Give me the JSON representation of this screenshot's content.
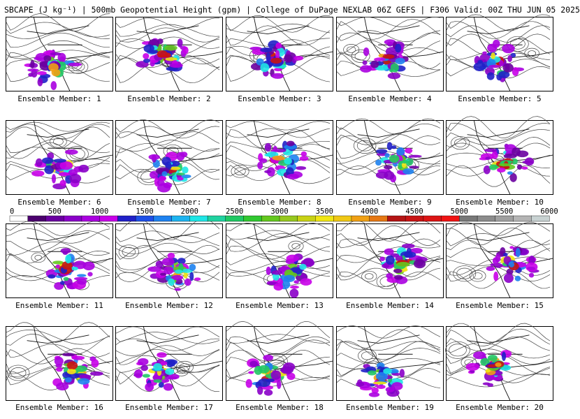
{
  "title": "SBCAPE (J kg⁻¹) | 500mb Geopotential Height (gpm) | College of DuPage NEXLAB 06Z GEFS | F306 Valid: 00Z THU JUN 05 2025",
  "colorbar": {
    "ticks": [
      "0",
      "500",
      "1000",
      "1500",
      "2000",
      "2500",
      "3000",
      "3500",
      "4000",
      "4500",
      "5000",
      "5500",
      "6000"
    ],
    "colors": [
      "#ffffff",
      "#4b006e",
      "#6a00a0",
      "#8a00c8",
      "#aa00e0",
      "#c800e8",
      "#2020c8",
      "#1e50e8",
      "#1e82f0",
      "#1eb4f0",
      "#1ee6e6",
      "#20d2a0",
      "#20c864",
      "#30c830",
      "#64c81e",
      "#96c81e",
      "#c8d214",
      "#f0e614",
      "#f0c814",
      "#f0a014",
      "#e67814",
      "#b41414",
      "#c81414",
      "#dc1414",
      "#f01414",
      "#787878",
      "#8c8c8c",
      "#a0a0a0",
      "#b4b4b4",
      "#c8d2d2"
    ],
    "min": 0,
    "max": 6000
  },
  "members": [
    {
      "label": "Ensemble Member: 1"
    },
    {
      "label": "Ensemble Member: 2"
    },
    {
      "label": "Ensemble Member: 3"
    },
    {
      "label": "Ensemble Member: 4"
    },
    {
      "label": "Ensemble Member: 5"
    },
    {
      "label": "Ensemble Member: 6"
    },
    {
      "label": "Ensemble Member: 7"
    },
    {
      "label": "Ensemble Member: 8"
    },
    {
      "label": "Ensemble Member: 9"
    },
    {
      "label": "Ensemble Member: 10"
    },
    {
      "label": "Ensemble Member: 11"
    },
    {
      "label": "Ensemble Member: 12"
    },
    {
      "label": "Ensemble Member: 13"
    },
    {
      "label": "Ensemble Member: 14"
    },
    {
      "label": "Ensemble Member: 15"
    },
    {
      "label": "Ensemble Member: 16"
    },
    {
      "label": "Ensemble Member: 17"
    },
    {
      "label": "Ensemble Member: 18"
    },
    {
      "label": "Ensemble Member: 19"
    },
    {
      "label": "Ensemble Member: 20"
    }
  ]
}
